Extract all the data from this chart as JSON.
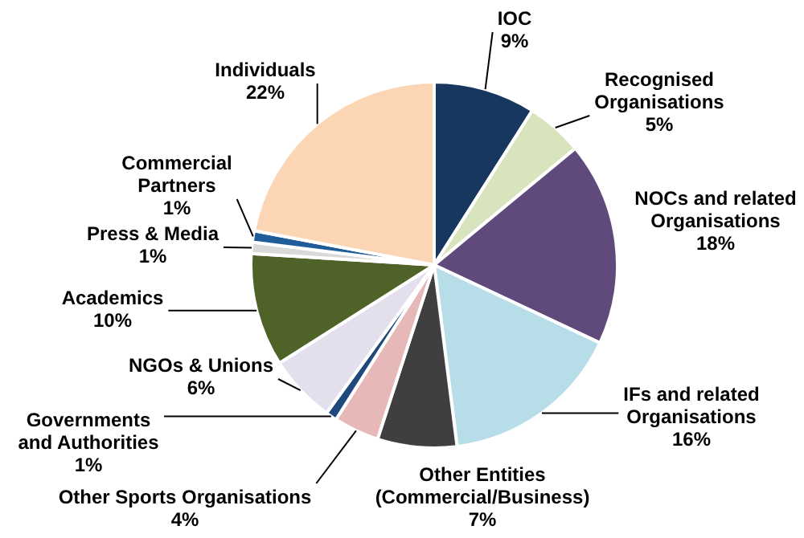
{
  "chart_data": {
    "type": "pie",
    "categories": [
      "IOC",
      "Recognised Organisations",
      "NOCs and related Organisations",
      "IFs and related Organisations",
      "Other Entities (Commercial/Business)",
      "Other Sports Organisations",
      "Governments and Authorities",
      "NGOs & Unions",
      "Academics",
      "Press & Media",
      "Commercial Partners",
      "Individuals"
    ],
    "values": [
      9,
      5,
      18,
      16,
      7,
      4,
      1,
      6,
      10,
      1,
      1,
      22
    ],
    "value_labels": [
      "9%",
      "5%",
      "18%",
      "16%",
      "7%",
      "4%",
      "1%",
      "6%",
      "10%",
      "1%",
      "1%",
      "22%"
    ],
    "colors": [
      "#17375e",
      "#d7e4bd",
      "#604a7b",
      "#b7dee8",
      "#3f3f3f",
      "#e6b9b8",
      "#1f497d",
      "#e4dfec",
      "#4f6228",
      "#d9d9d9",
      "#1f5c99",
      "#fcd5b5"
    ]
  }
}
